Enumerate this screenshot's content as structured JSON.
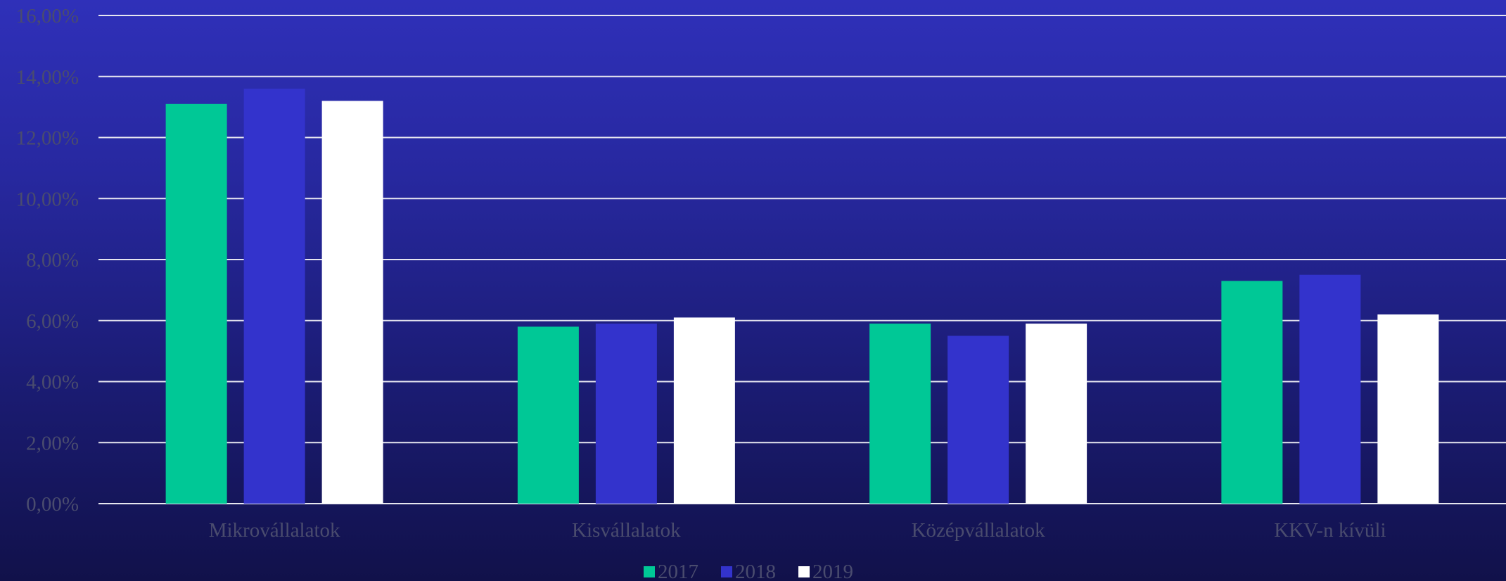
{
  "chart_data": {
    "type": "bar",
    "categories": [
      "Mikrovállalatok",
      "Kisvállalatok",
      "Középvállalatok",
      "KKV-n kívüli"
    ],
    "series": [
      {
        "name": "2017",
        "color": "#00c896",
        "values": [
          13.1,
          5.8,
          5.9,
          7.3
        ]
      },
      {
        "name": "2018",
        "color": "#3333cc",
        "values": [
          13.6,
          5.9,
          5.5,
          7.5
        ]
      },
      {
        "name": "2019",
        "color": "#ffffff",
        "values": [
          13.2,
          6.1,
          5.9,
          6.2
        ]
      }
    ],
    "ylim": [
      0,
      16
    ],
    "yticks": [
      "0,00%",
      "2,00%",
      "4,00%",
      "6,00%",
      "8,00%",
      "10,00%",
      "12,00%",
      "14,00%",
      "16,00%"
    ],
    "grid": true,
    "legend_position": "bottom-center",
    "gridline_color": "#e6e6f0",
    "text_color": "#4a4c6e"
  }
}
